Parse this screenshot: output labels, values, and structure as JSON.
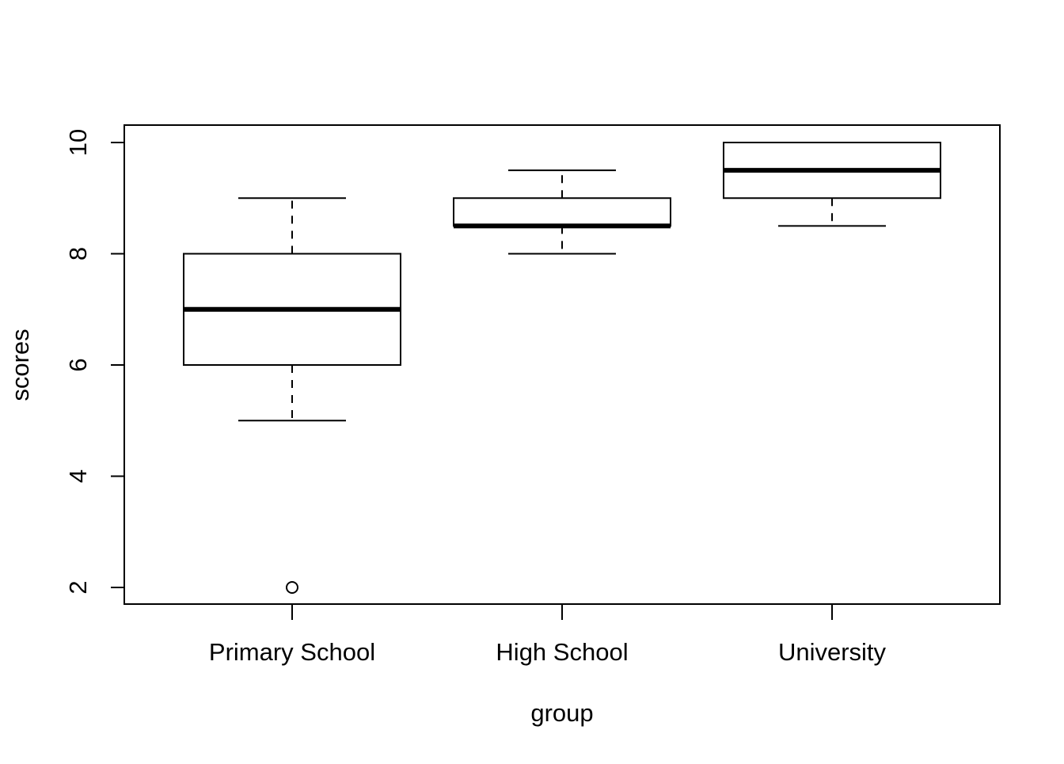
{
  "chart_data": {
    "type": "boxplot",
    "xlabel": "group",
    "ylabel": "scores",
    "categories": [
      "Primary School",
      "High School",
      "University"
    ],
    "boxes": [
      {
        "category": "Primary School",
        "whisker_low": 5,
        "q1": 6,
        "median": 7,
        "q3": 8,
        "whisker_high": 9,
        "outliers": [
          2
        ]
      },
      {
        "category": "High School",
        "whisker_low": 8,
        "q1": 8.5,
        "median": 8.5,
        "q3": 9,
        "whisker_high": 9.5,
        "outliers": []
      },
      {
        "category": "University",
        "whisker_low": 8.5,
        "q1": 9,
        "median": 9.5,
        "q3": 10,
        "whisker_high": 10,
        "outliers": []
      }
    ],
    "y_ticks": [
      "2",
      "4",
      "6",
      "8",
      "10"
    ],
    "ylim": [
      1.7,
      10.3
    ],
    "grid": false,
    "legend": "none",
    "colors": {
      "box_fill": "#ffffff",
      "line": "#000000"
    }
  }
}
